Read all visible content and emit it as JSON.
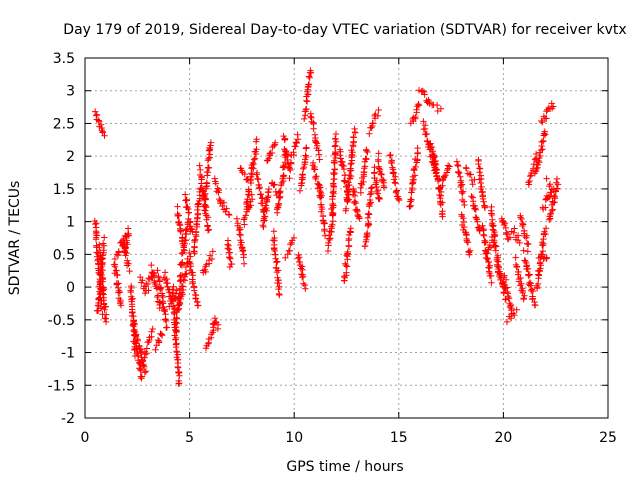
{
  "chart_data": {
    "type": "scatter",
    "title": "Day 179 of 2019, Sidereal Day-to-day VTEC variation (SDTVAR) for receiver kvtx",
    "xlabel": "GPS time / hours",
    "ylabel": "SDTVAR / TECUs",
    "xlim": [
      0,
      25
    ],
    "ylim": [
      -2,
      3.5
    ],
    "xticks": [
      0,
      5,
      10,
      15,
      20,
      25
    ],
    "yticks": [
      -2,
      -1.5,
      -1,
      -0.5,
      0,
      0.5,
      1,
      1.5,
      2,
      2.5,
      3,
      3.5
    ],
    "grid": true,
    "marker": "plus",
    "color": "#ff0000",
    "series": [
      {
        "name": "SDTVAR",
        "arcs": [
          [
            0.5,
            2.7,
            0.9,
            2.3
          ],
          [
            0.5,
            1.0,
            0.8,
            -0.4
          ],
          [
            0.6,
            -0.4,
            0.9,
            0.7
          ],
          [
            0.7,
            0.6,
            1.0,
            -0.5
          ],
          [
            1.4,
            0.4,
            1.7,
            -0.3
          ],
          [
            1.5,
            0.5,
            2.0,
            0.8
          ],
          [
            1.8,
            0.7,
            2.1,
            0.3
          ],
          [
            1.9,
            0.5,
            2.1,
            0.9
          ],
          [
            2.2,
            0.0,
            2.4,
            -1.0
          ],
          [
            2.3,
            -0.5,
            2.7,
            -1.4
          ],
          [
            2.5,
            -0.8,
            2.9,
            -1.3
          ],
          [
            2.8,
            -1.1,
            3.2,
            -0.7
          ],
          [
            2.6,
            0.1,
            3.0,
            -0.1
          ],
          [
            2.9,
            0.0,
            3.3,
            0.2
          ],
          [
            3.2,
            0.3,
            3.6,
            -0.3
          ],
          [
            3.4,
            -0.9,
            3.7,
            -0.7
          ],
          [
            3.5,
            0.2,
            3.9,
            -0.6
          ],
          [
            3.8,
            0.2,
            4.1,
            -0.2
          ],
          [
            4.0,
            -0.3,
            4.4,
            -0.1
          ],
          [
            4.2,
            0.0,
            4.5,
            -1.5
          ],
          [
            4.3,
            -0.7,
            4.6,
            0.2
          ],
          [
            4.4,
            1.2,
            4.7,
            0.6
          ],
          [
            4.6,
            0.3,
            4.9,
            1.0
          ],
          [
            4.8,
            1.4,
            5.1,
            0.8
          ],
          [
            4.5,
            -0.3,
            5.0,
            0.5
          ],
          [
            5.0,
            0.4,
            5.4,
            -0.3
          ],
          [
            5.2,
            0.5,
            5.5,
            1.5
          ],
          [
            5.5,
            1.8,
            5.9,
            0.9
          ],
          [
            5.7,
            1.2,
            6.0,
            2.2
          ],
          [
            5.8,
            -0.9,
            6.2,
            -0.6
          ],
          [
            6.1,
            -0.5,
            6.4,
            -0.6
          ],
          [
            5.6,
            0.2,
            6.1,
            0.5
          ],
          [
            6.2,
            1.6,
            6.5,
            1.3
          ],
          [
            6.5,
            1.3,
            6.9,
            1.1
          ],
          [
            6.8,
            0.7,
            7.0,
            0.3
          ],
          [
            7.3,
            1.0,
            7.6,
            0.4
          ],
          [
            7.4,
            1.8,
            7.8,
            1.6
          ],
          [
            7.6,
            1.0,
            8.0,
            1.4
          ],
          [
            7.7,
            1.2,
            8.2,
            2.2
          ],
          [
            8.2,
            1.7,
            8.6,
            1.1
          ],
          [
            8.5,
            0.9,
            8.8,
            1.5
          ],
          [
            8.7,
            1.9,
            9.1,
            2.2
          ],
          [
            8.9,
            1.6,
            9.3,
            1.4
          ],
          [
            9.0,
            0.8,
            9.3,
            -0.1
          ],
          [
            9.2,
            1.1,
            9.6,
            2.0
          ],
          [
            9.5,
            2.3,
            9.8,
            1.7
          ],
          [
            9.6,
            0.5,
            10.0,
            0.7
          ],
          [
            9.8,
            1.9,
            10.2,
            2.3
          ],
          [
            10.2,
            0.5,
            10.5,
            0.0
          ],
          [
            10.3,
            1.5,
            10.6,
            2.1
          ],
          [
            10.5,
            2.6,
            10.8,
            3.3
          ],
          [
            10.8,
            2.6,
            11.2,
            2.0
          ],
          [
            10.9,
            1.9,
            11.3,
            1.4
          ],
          [
            11.2,
            1.5,
            11.5,
            0.8
          ],
          [
            11.6,
            0.6,
            11.9,
            1.2
          ],
          [
            11.8,
            1.1,
            12.0,
            2.3
          ],
          [
            12.2,
            2.1,
            12.6,
            1.3
          ],
          [
            12.4,
            0.1,
            12.7,
            0.9
          ],
          [
            12.5,
            1.2,
            12.9,
            2.4
          ],
          [
            12.8,
            1.5,
            13.1,
            1.0
          ],
          [
            13.2,
            1.5,
            13.5,
            2.1
          ],
          [
            13.4,
            0.6,
            13.7,
            1.5
          ],
          [
            13.6,
            2.4,
            14.0,
            2.7
          ],
          [
            13.8,
            1.8,
            14.1,
            1.3
          ],
          [
            14.0,
            2.0,
            14.3,
            1.5
          ],
          [
            14.6,
            2.0,
            15.0,
            1.3
          ],
          [
            15.5,
            1.2,
            15.9,
            2.1
          ],
          [
            15.6,
            2.5,
            16.0,
            2.8
          ],
          [
            16.0,
            3.0,
            16.5,
            2.8
          ],
          [
            16.4,
            2.8,
            17.0,
            2.7
          ],
          [
            16.2,
            2.5,
            16.7,
            1.8
          ],
          [
            16.5,
            2.2,
            16.9,
            1.6
          ],
          [
            16.7,
            2.0,
            17.1,
            1.1
          ],
          [
            17.0,
            1.5,
            17.4,
            1.9
          ],
          [
            17.8,
            1.9,
            18.1,
            1.3
          ],
          [
            18.0,
            1.1,
            18.4,
            0.5
          ],
          [
            18.2,
            1.8,
            18.6,
            1.6
          ],
          [
            18.5,
            1.4,
            18.9,
            0.8
          ],
          [
            18.8,
            1.9,
            19.1,
            1.2
          ],
          [
            19.0,
            0.9,
            19.4,
            0.1
          ],
          [
            19.2,
            0.5,
            19.6,
            0.8
          ],
          [
            19.4,
            1.2,
            19.8,
            0.2
          ],
          [
            19.7,
            0.4,
            20.1,
            -0.2
          ],
          [
            19.9,
            1.1,
            20.3,
            0.7
          ],
          [
            20.0,
            0.2,
            20.4,
            -0.4
          ],
          [
            20.2,
            -0.5,
            20.6,
            -0.4
          ],
          [
            20.4,
            0.9,
            20.8,
            0.7
          ],
          [
            20.6,
            0.4,
            21.0,
            -0.2
          ],
          [
            20.8,
            1.1,
            21.2,
            0.6
          ],
          [
            21.0,
            0.5,
            21.5,
            -0.3
          ],
          [
            21.2,
            1.6,
            21.6,
            2.0
          ],
          [
            21.5,
            1.7,
            22.0,
            2.4
          ],
          [
            21.8,
            2.5,
            22.4,
            2.8
          ],
          [
            21.6,
            0.0,
            22.0,
            0.9
          ],
          [
            21.9,
            1.2,
            22.3,
            1.5
          ],
          [
            22.1,
            1.6,
            22.6,
            1.5
          ],
          [
            21.7,
            0.4,
            22.1,
            0.5
          ],
          [
            22.2,
            1.0,
            22.6,
            1.6
          ]
        ]
      }
    ]
  }
}
